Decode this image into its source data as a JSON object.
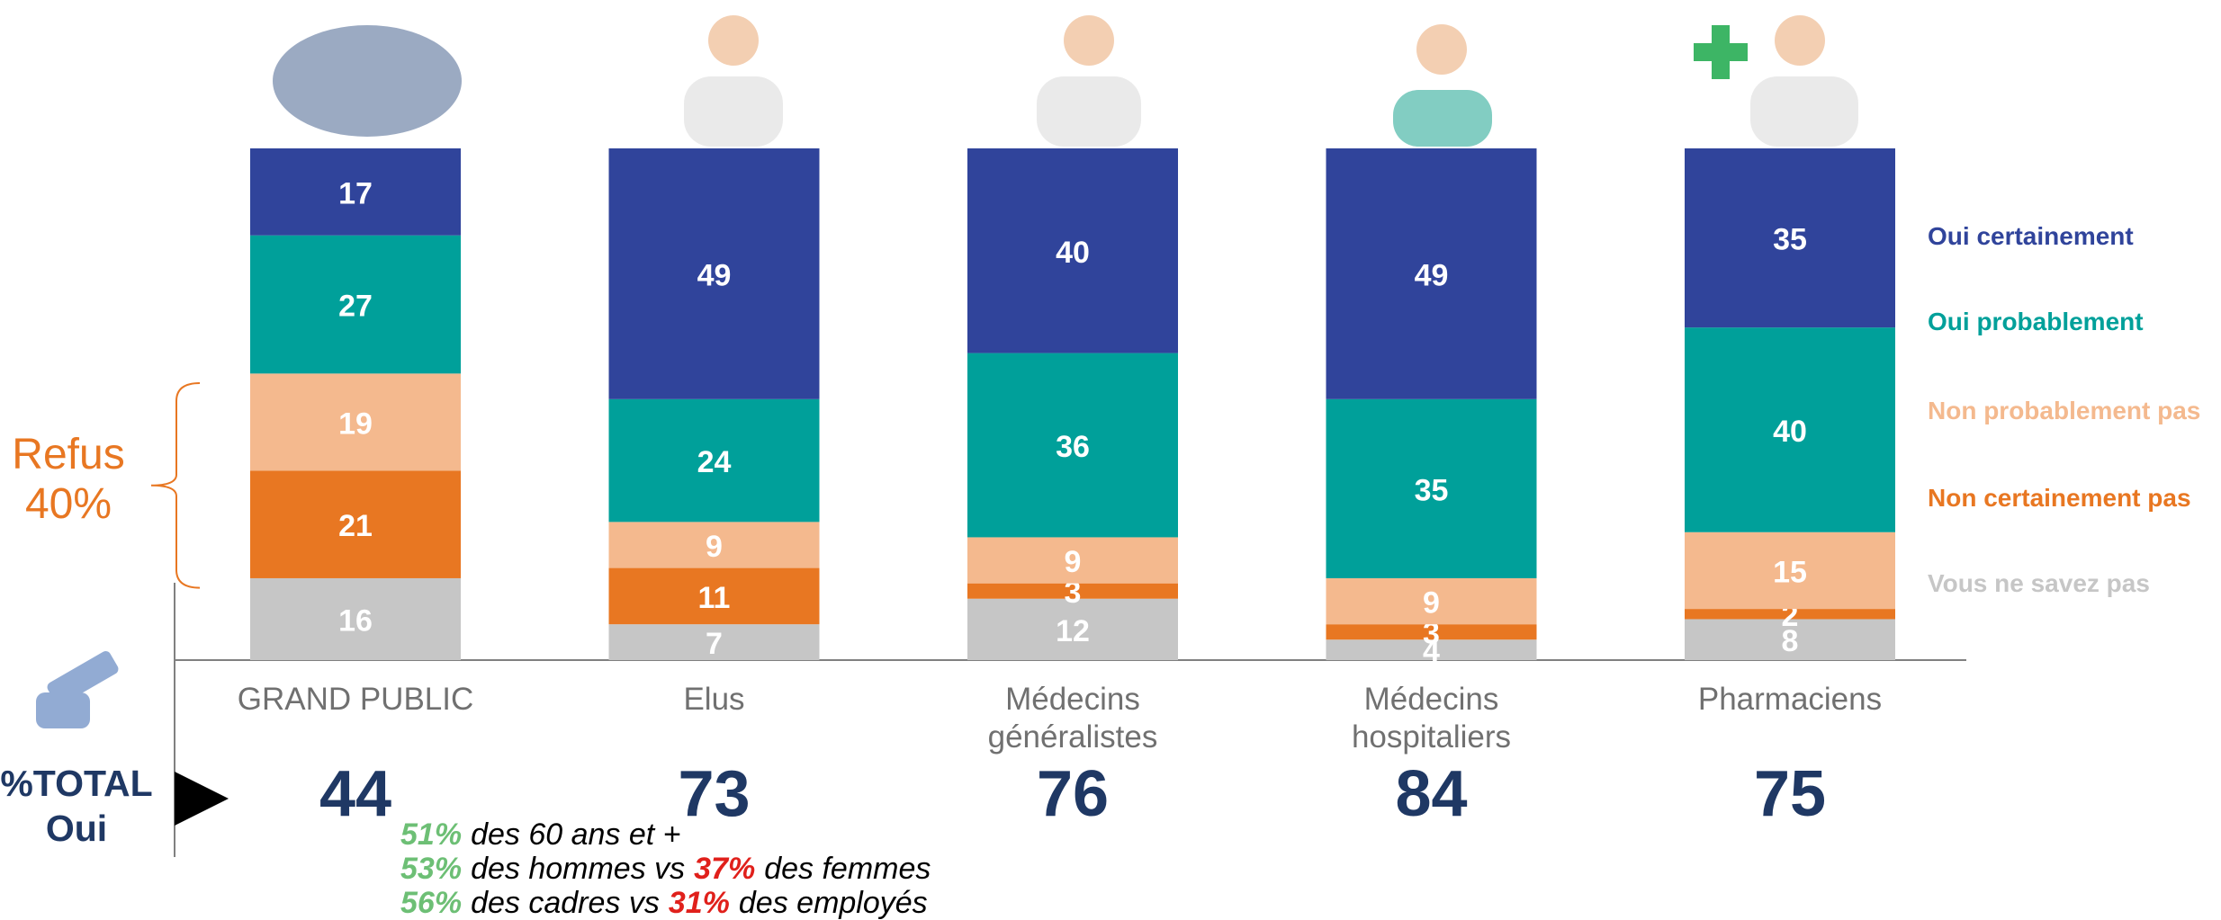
{
  "chart_data": {
    "type": "stacked_bar",
    "categories": [
      "GRAND PUBLIC",
      "Elus",
      "Médecins généralistes",
      "Médecins hospitaliers",
      "Pharmaciens"
    ],
    "ylim": [
      0,
      100
    ],
    "series": [
      {
        "name": "Oui certainement",
        "color": "#30449b",
        "values": [
          17,
          49,
          40,
          49,
          35
        ]
      },
      {
        "name": "Oui probablement",
        "color": "#00a09a",
        "values": [
          27,
          24,
          36,
          35,
          40
        ]
      },
      {
        "name": "Non probablement pas",
        "color": "#f4b98e",
        "values": [
          19,
          9,
          9,
          9,
          15
        ]
      },
      {
        "name": "Non certainement pas",
        "color": "#e87722",
        "values": [
          21,
          11,
          3,
          3,
          2
        ]
      },
      {
        "name": "Vous ne savez pas",
        "color": "#c6c6c6",
        "values": [
          16,
          7,
          12,
          4,
          8
        ]
      }
    ],
    "legend": "right",
    "totals": {
      "label": "%TOTAL Oui",
      "color": "#1f3864",
      "values": [
        44,
        73,
        76,
        84,
        75
      ]
    },
    "refus": {
      "label": "Refus",
      "value": 40,
      "value_label": "40%",
      "color": "#e87722"
    },
    "annotations": [
      [
        {
          "text": "51%",
          "color": "#6dbf75"
        },
        {
          "text": "des 60 ans et +"
        }
      ],
      [
        {
          "text": "53%",
          "color": "#6dbf75"
        },
        {
          "text": "des hommes vs"
        },
        {
          "text": "37%",
          "color": "#e0201b"
        },
        {
          "text": "des femmes"
        }
      ],
      [
        {
          "text": "56%",
          "color": "#6dbf75"
        },
        {
          "text": "des cadres vs"
        },
        {
          "text": "31%",
          "color": "#e0201b"
        },
        {
          "text": "des employés"
        }
      ]
    ]
  }
}
